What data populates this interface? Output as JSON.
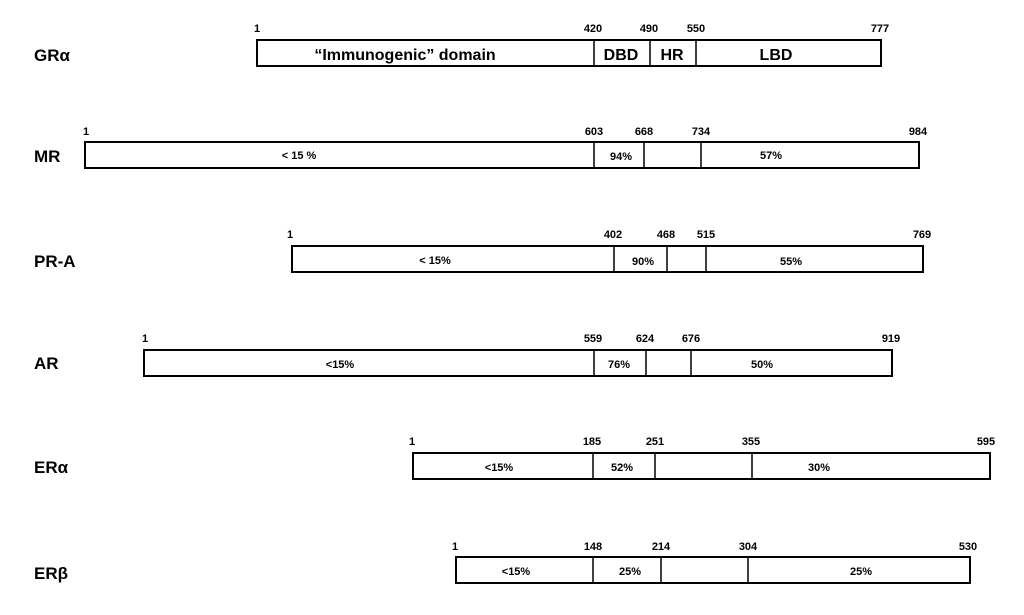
{
  "receptors": [
    {
      "name": "GRα",
      "positions": [
        "1",
        "420",
        "490",
        "550",
        "777"
      ],
      "segments": [
        "“Immunogenic” domain",
        "DBD",
        "HR",
        "LBD"
      ]
    },
    {
      "name": "MR",
      "positions": [
        "1",
        "603",
        "668",
        "734",
        "984"
      ],
      "segments": [
        "< 15 %",
        "94%",
        "",
        "57%"
      ]
    },
    {
      "name": "PR-A",
      "positions": [
        "1",
        "402",
        "468",
        "515",
        "769"
      ],
      "segments": [
        "< 15%",
        "90%",
        "",
        "55%"
      ]
    },
    {
      "name": "AR",
      "positions": [
        "1",
        "559",
        "624",
        "676",
        "919"
      ],
      "segments": [
        "<15%",
        "76%",
        "",
        "50%"
      ]
    },
    {
      "name": "ERα",
      "positions": [
        "1",
        "185",
        "251",
        "355",
        "595"
      ],
      "segments": [
        "<15%",
        "52%",
        "",
        "30%"
      ]
    },
    {
      "name": "ERβ",
      "positions": [
        "1",
        "148",
        "214",
        "304",
        "530"
      ],
      "segments": [
        "<15%",
        "25%",
        "",
        "25%"
      ]
    }
  ]
}
